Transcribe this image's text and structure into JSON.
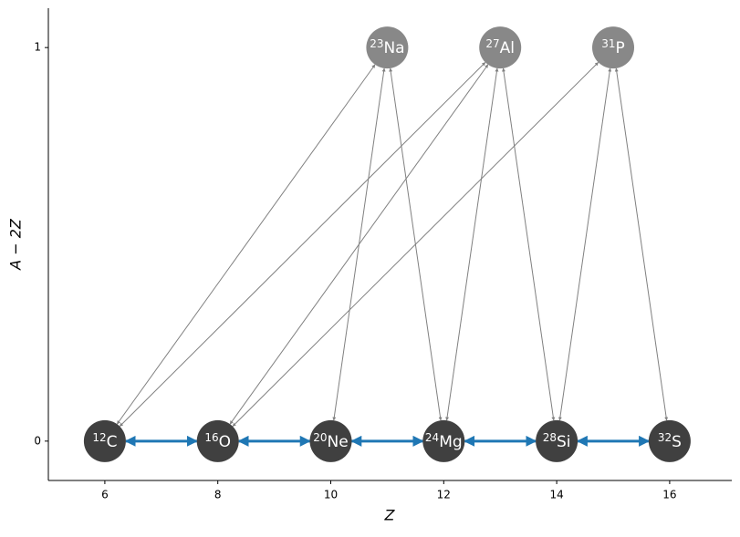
{
  "chart_data": {
    "type": "network",
    "xlabel": "Z",
    "ylabel": "A − 2Z",
    "xlim": [
      5,
      17.1
    ],
    "ylim": [
      -0.1,
      1.1
    ],
    "xticks": [
      6,
      8,
      10,
      12,
      14,
      16
    ],
    "yticks": [
      0,
      1
    ],
    "nodes": [
      {
        "z": 6,
        "a2z": 0,
        "mass": "12",
        "symbol": "C",
        "color": "#404040"
      },
      {
        "z": 8,
        "a2z": 0,
        "mass": "16",
        "symbol": "O",
        "color": "#404040"
      },
      {
        "z": 10,
        "a2z": 0,
        "mass": "20",
        "symbol": "Ne",
        "color": "#404040"
      },
      {
        "z": 12,
        "a2z": 0,
        "mass": "24",
        "symbol": "Mg",
        "color": "#404040"
      },
      {
        "z": 14,
        "a2z": 0,
        "mass": "28",
        "symbol": "Si",
        "color": "#404040"
      },
      {
        "z": 16,
        "a2z": 0,
        "mass": "32",
        "symbol": "S",
        "color": "#404040"
      },
      {
        "z": 11,
        "a2z": 1,
        "mass": "23",
        "symbol": "Na",
        "color": "#888888"
      },
      {
        "z": 13,
        "a2z": 1,
        "mass": "27",
        "symbol": "Al",
        "color": "#888888"
      },
      {
        "z": 15,
        "a2z": 1,
        "mass": "31",
        "symbol": "P",
        "color": "#888888"
      }
    ],
    "edges": [
      {
        "from": [
          6,
          0
        ],
        "to": [
          11,
          1
        ],
        "color": "#808080",
        "width": 1
      },
      {
        "from": [
          6,
          0
        ],
        "to": [
          13,
          1
        ],
        "color": "#808080",
        "width": 1
      },
      {
        "from": [
          8,
          0
        ],
        "to": [
          13,
          1
        ],
        "color": "#808080",
        "width": 1
      },
      {
        "from": [
          8,
          0
        ],
        "to": [
          15,
          1
        ],
        "color": "#808080",
        "width": 1
      },
      {
        "from": [
          10,
          0
        ],
        "to": [
          11,
          1
        ],
        "color": "#808080",
        "width": 1
      },
      {
        "from": [
          12,
          0
        ],
        "to": [
          11,
          1
        ],
        "color": "#808080",
        "width": 1
      },
      {
        "from": [
          12,
          0
        ],
        "to": [
          13,
          1
        ],
        "color": "#808080",
        "width": 1
      },
      {
        "from": [
          14,
          0
        ],
        "to": [
          13,
          1
        ],
        "color": "#808080",
        "width": 1
      },
      {
        "from": [
          14,
          0
        ],
        "to": [
          15,
          1
        ],
        "color": "#808080",
        "width": 1
      },
      {
        "from": [
          16,
          0
        ],
        "to": [
          15,
          1
        ],
        "color": "#808080",
        "width": 1
      },
      {
        "from": [
          6,
          0
        ],
        "to": [
          8,
          0
        ],
        "color": "#1f77b4",
        "width": 3
      },
      {
        "from": [
          8,
          0
        ],
        "to": [
          10,
          0
        ],
        "color": "#1f77b4",
        "width": 3
      },
      {
        "from": [
          10,
          0
        ],
        "to": [
          12,
          0
        ],
        "color": "#1f77b4",
        "width": 3
      },
      {
        "from": [
          12,
          0
        ],
        "to": [
          14,
          0
        ],
        "color": "#1f77b4",
        "width": 3
      },
      {
        "from": [
          14,
          0
        ],
        "to": [
          16,
          0
        ],
        "color": "#1f77b4",
        "width": 3
      }
    ]
  }
}
